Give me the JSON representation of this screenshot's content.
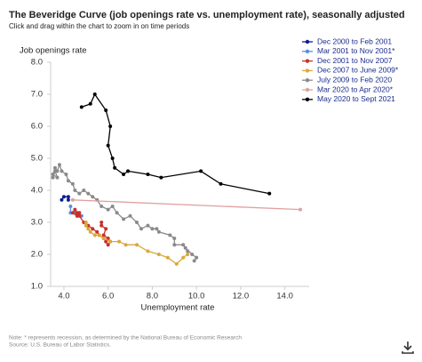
{
  "title": "The Beveridge Curve (job openings rate vs. unemployment rate), seasonally adjusted",
  "subtitle": "Click and drag within the chart to zoom in on time periods",
  "notes": [
    "Note: * represents recession, as determined by the National Bureau of Economic Research",
    "Source: U.S. Bureau of Labor Statistics."
  ],
  "chart_data": {
    "type": "line",
    "markers": true,
    "x_label": "Unemployment rate",
    "y_label": "Job openings rate",
    "xlim": [
      3.4,
      15.1
    ],
    "ylim": [
      1.0,
      8.0
    ],
    "xticks": [
      {
        "value": 4,
        "label": "4.0"
      },
      {
        "value": 6,
        "label": "6.0"
      },
      {
        "value": 8,
        "label": "8.0"
      },
      {
        "value": 10,
        "label": "10.0"
      },
      {
        "value": 12,
        "label": "12.0"
      },
      {
        "value": 14,
        "label": "14.0"
      }
    ],
    "yticks": [
      {
        "value": 1,
        "label": "1.0"
      },
      {
        "value": 2,
        "label": "2.0"
      },
      {
        "value": 3,
        "label": "3.0"
      },
      {
        "value": 4,
        "label": "4.0"
      },
      {
        "value": 5,
        "label": "5.0"
      },
      {
        "value": 6,
        "label": "6.0"
      },
      {
        "value": 7,
        "label": "7.0"
      },
      {
        "value": 8,
        "label": "8.0"
      }
    ],
    "grid": false,
    "legend": "top-right",
    "series": [
      {
        "name": "Dec 2000 to Feb 2001",
        "color": "#0d1f8f",
        "x": [
          3.9,
          4.0,
          4.2,
          4.2
        ],
        "values": [
          3.7,
          3.8,
          3.8,
          3.7
        ]
      },
      {
        "name": "Mar 2001 to Nov 2001*",
        "color": "#5b8fe0",
        "x": [
          4.3,
          4.3,
          4.5,
          4.6,
          4.8
        ],
        "values": [
          3.5,
          3.3,
          3.3,
          3.2,
          3.2
        ]
      },
      {
        "name": "Dec 2001 to Nov 2007",
        "color": "#c8302a",
        "x": [
          5.7,
          5.7,
          5.9,
          5.8,
          6.0,
          5.9,
          6.0,
          6.1,
          5.8,
          5.6,
          5.5,
          5.3,
          5.1,
          4.9,
          4.7,
          4.6,
          4.5,
          4.4,
          4.6,
          4.7
        ],
        "values": [
          3.0,
          2.9,
          2.8,
          2.6,
          2.5,
          2.4,
          2.3,
          2.4,
          2.5,
          2.6,
          2.7,
          2.8,
          2.9,
          3.0,
          3.2,
          3.3,
          3.4,
          3.3,
          3.2,
          3.3
        ]
      },
      {
        "name": "Dec 2007 to June 2009*",
        "color": "#d9a93a",
        "x": [
          5.0,
          5.0,
          5.1,
          5.2,
          5.4,
          5.6,
          5.8,
          6.1,
          6.5,
          6.8,
          7.3,
          7.8,
          8.3,
          8.7,
          9.1,
          9.4,
          9.6
        ],
        "values": [
          3.0,
          2.9,
          2.8,
          2.7,
          2.6,
          2.6,
          2.5,
          2.4,
          2.4,
          2.3,
          2.3,
          2.1,
          2.0,
          1.9,
          1.7,
          1.9,
          2.0
        ]
      },
      {
        "name": "July 2009 to Feb 2020",
        "color": "#8a8a8a",
        "x": [
          9.9,
          10.0,
          9.8,
          9.5,
          9.6,
          9.4,
          9.0,
          9.0,
          8.8,
          8.3,
          8.2,
          8.0,
          7.8,
          7.5,
          7.3,
          7.0,
          6.7,
          6.4,
          6.2,
          6.0,
          5.7,
          5.5,
          5.3,
          5.1,
          4.9,
          4.7,
          4.5,
          4.4,
          4.2,
          4.1,
          3.9,
          3.8,
          3.7,
          3.6,
          3.5,
          3.7,
          3.6,
          3.5
        ],
        "values": [
          1.8,
          1.9,
          2.0,
          2.2,
          2.1,
          2.3,
          2.3,
          2.5,
          2.6,
          2.7,
          2.8,
          2.8,
          2.9,
          2.8,
          3.0,
          3.2,
          3.1,
          3.3,
          3.5,
          3.4,
          3.5,
          3.7,
          3.8,
          3.9,
          4.0,
          3.9,
          4.0,
          4.2,
          4.3,
          4.5,
          4.6,
          4.8,
          4.6,
          4.7,
          4.5,
          4.4,
          4.6,
          4.4
        ]
      },
      {
        "name": "Mar 2020 to Apr 2020*",
        "color": "#e0a0a0",
        "x": [
          4.4,
          14.7
        ],
        "values": [
          3.7,
          3.4
        ]
      },
      {
        "name": "May 2020 to Sept 2021",
        "color": "#000000",
        "x": [
          13.3,
          11.1,
          10.2,
          8.4,
          7.8,
          6.9,
          6.7,
          6.3,
          6.2,
          6.0,
          6.1,
          5.9,
          5.4,
          5.2,
          4.8
        ],
        "values": [
          3.9,
          4.2,
          4.6,
          4.4,
          4.5,
          4.6,
          4.5,
          4.7,
          5.0,
          5.4,
          6.0,
          6.5,
          7.0,
          6.7,
          6.6
        ]
      }
    ]
  }
}
